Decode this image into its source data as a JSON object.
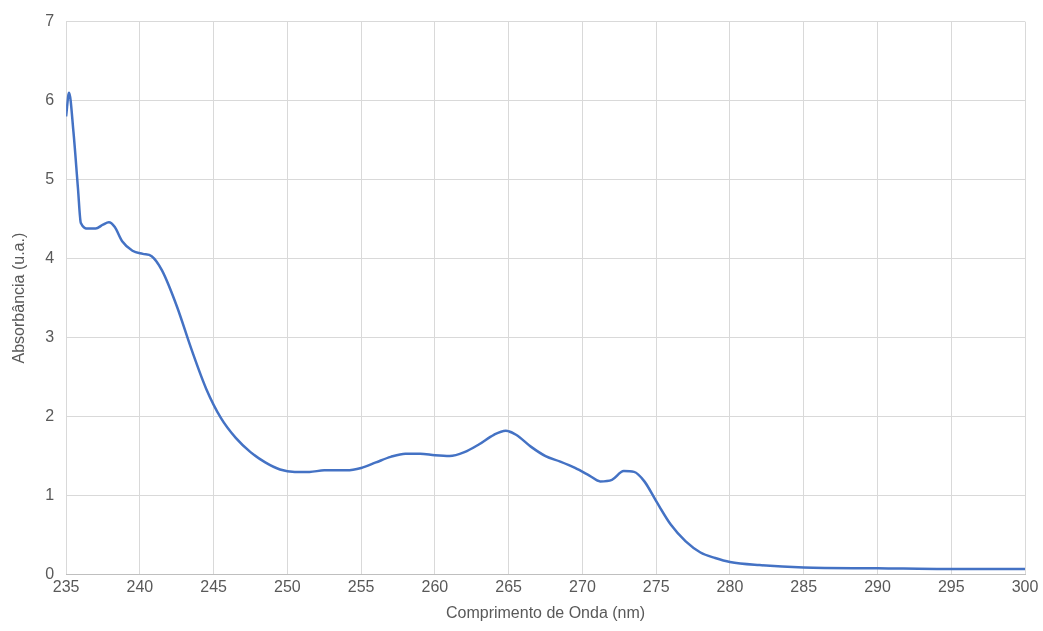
{
  "chart_data": {
    "type": "line",
    "xlabel": "Comprimento de Onda (nm)",
    "ylabel": "Absorbância (u.a.)",
    "x": [
      235.0,
      235.2,
      235.5,
      235.8,
      236.0,
      236.5,
      237.0,
      237.5,
      237.9,
      238.3,
      238.8,
      239.5,
      240.2,
      240.8,
      241.5,
      242.5,
      243.5,
      244.5,
      245.5,
      246.5,
      247.5,
      248.5,
      249.5,
      250.5,
      251.5,
      252.5,
      254,
      255,
      256,
      257,
      258,
      259,
      260,
      261,
      262,
      263,
      264,
      264.8,
      265.5,
      266.5,
      267.5,
      268.5,
      269.5,
      270.5,
      271.2,
      272,
      272.8,
      273.5,
      274.2,
      275,
      276,
      277,
      278,
      279,
      280,
      282,
      285,
      290,
      295,
      300
    ],
    "series": [
      {
        "color": "#4472c4",
        "values": [
          5.8,
          6.1,
          5.6,
          4.9,
          4.45,
          4.38,
          4.38,
          4.43,
          4.46,
          4.4,
          4.22,
          4.1,
          4.06,
          4.03,
          3.85,
          3.4,
          2.85,
          2.35,
          1.98,
          1.73,
          1.55,
          1.42,
          1.33,
          1.3,
          1.3,
          1.32,
          1.32,
          1.35,
          1.42,
          1.49,
          1.53,
          1.53,
          1.51,
          1.5,
          1.55,
          1.65,
          1.77,
          1.82,
          1.77,
          1.62,
          1.5,
          1.43,
          1.35,
          1.25,
          1.18,
          1.2,
          1.31,
          1.3,
          1.18,
          0.93,
          0.63,
          0.42,
          0.28,
          0.21,
          0.16,
          0.12,
          0.09,
          0.08,
          0.07,
          0.07
        ]
      }
    ],
    "xlim": [
      235,
      300
    ],
    "xticks": [
      235,
      240,
      245,
      250,
      255,
      260,
      265,
      270,
      275,
      280,
      285,
      290,
      295,
      300
    ],
    "ylim": [
      0,
      7
    ],
    "yticks": [
      0,
      1,
      2,
      3,
      4,
      5,
      6,
      7
    ],
    "grid": true,
    "legend": false,
    "marker": "none",
    "line_style": "solid"
  }
}
